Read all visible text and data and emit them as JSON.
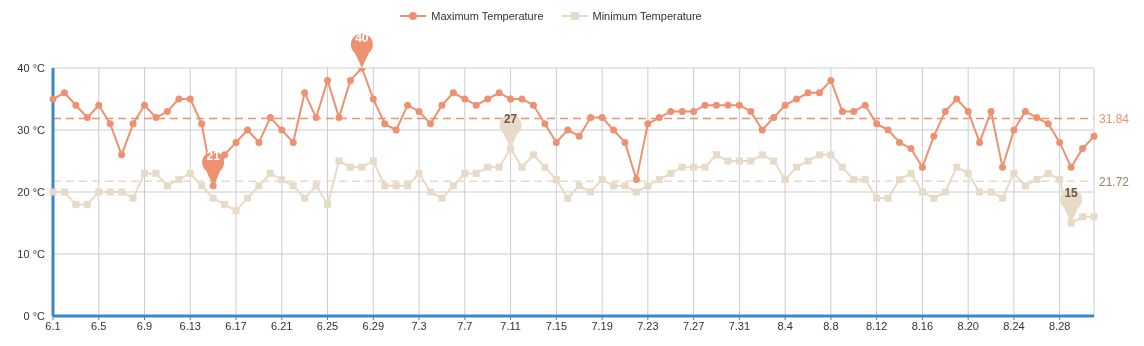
{
  "chart_data": {
    "type": "line",
    "categories": [
      "6.1",
      null,
      null,
      null,
      "6.5",
      null,
      null,
      null,
      "6.9",
      null,
      null,
      null,
      "6.13",
      null,
      null,
      null,
      "6.17",
      null,
      null,
      null,
      "6.21",
      null,
      null,
      null,
      "6.25",
      null,
      null,
      null,
      "6.29",
      null,
      null,
      null,
      "7.3",
      null,
      null,
      null,
      "7.7",
      null,
      null,
      null,
      "7.11",
      null,
      null,
      null,
      "7.15",
      null,
      null,
      null,
      "7.19",
      null,
      null,
      null,
      "7.23",
      null,
      null,
      null,
      "7.27",
      null,
      null,
      null,
      "7.31",
      null,
      null,
      null,
      "8.4",
      null,
      null,
      null,
      "8.8",
      null,
      null,
      null,
      "8.12",
      null,
      null,
      null,
      "8.16",
      null,
      null,
      null,
      "8.20",
      null,
      null,
      null,
      "8.24",
      null,
      null,
      null,
      "8.28",
      null,
      null,
      null
    ],
    "series": [
      {
        "name": "Maximum Temperature",
        "color": "#ee9171",
        "marker": "circle",
        "values": [
          35,
          36,
          34,
          32,
          34,
          31,
          26,
          31,
          34,
          32,
          33,
          35,
          35,
          31,
          21,
          26,
          28,
          30,
          28,
          32,
          30,
          28,
          36,
          32,
          38,
          32,
          38,
          40,
          35,
          31,
          30,
          34,
          33,
          31,
          34,
          36,
          35,
          34,
          35,
          36,
          35,
          35,
          34,
          31,
          28,
          30,
          29,
          32,
          32,
          30,
          28,
          22,
          31,
          32,
          33,
          33,
          33,
          34,
          34,
          34,
          34,
          33,
          30,
          32,
          34,
          35,
          36,
          36,
          38,
          33,
          33,
          34,
          31,
          30,
          28,
          27,
          24,
          29,
          33,
          35,
          33,
          28,
          33,
          24,
          30,
          33,
          32,
          31,
          28,
          24,
          27,
          29
        ]
      },
      {
        "name": "Minimum Temperature",
        "color": "#e8dac8",
        "marker": "square",
        "values": [
          20,
          20,
          18,
          18,
          20,
          20,
          20,
          19,
          23,
          23,
          21,
          22,
          23,
          21,
          19,
          18,
          17,
          19,
          21,
          23,
          22,
          21,
          19,
          21,
          18,
          25,
          24,
          24,
          25,
          21,
          21,
          21,
          23,
          20,
          19,
          21,
          23,
          23,
          24,
          24,
          27,
          24,
          26,
          24,
          22,
          19,
          21,
          20,
          22,
          21,
          21,
          20,
          21,
          22,
          23,
          24,
          24,
          24,
          26,
          25,
          25,
          25,
          26,
          25,
          22,
          24,
          25,
          26,
          26,
          24,
          22,
          22,
          19,
          19,
          22,
          23,
          20,
          19,
          20,
          24,
          23,
          20,
          20,
          19,
          23,
          21,
          22,
          23,
          22,
          15,
          16,
          16
        ]
      }
    ],
    "ylim": [
      0,
      40
    ],
    "yticks": [
      {
        "value": 0,
        "label": "0 °C"
      },
      {
        "value": 10,
        "label": "10 °C"
      },
      {
        "value": 20,
        "label": "20 °C"
      },
      {
        "value": 30,
        "label": "30 °C"
      },
      {
        "value": 40,
        "label": "40 °C"
      }
    ],
    "grid": true,
    "legend": "top",
    "ref_lines": [
      {
        "axis": "y",
        "value": 31.84,
        "label": "31.84",
        "color": "#ee9171",
        "line_style": "dashed"
      },
      {
        "axis": "y",
        "value": 21.72,
        "label": "21.72",
        "color": "#e8dac8",
        "line_style": "dashed"
      }
    ],
    "annotations": [
      {
        "text": "21",
        "y": 21
      },
      {
        "text": "40",
        "y": 40
      },
      {
        "text": "27",
        "x": "7.11",
        "y": 27
      },
      {
        "text": "15",
        "y": 15
      }
    ]
  }
}
